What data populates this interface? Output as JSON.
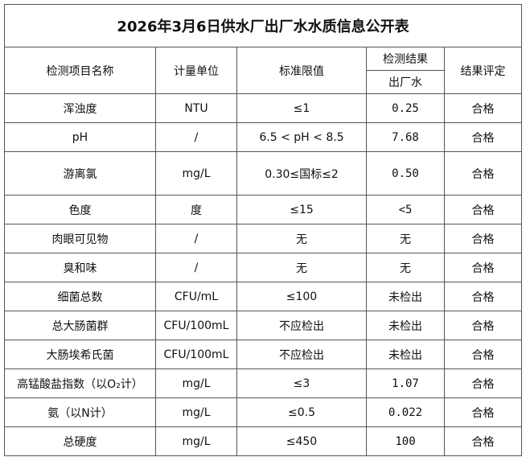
{
  "title": "2026年3月6日供水厂出厂水水质信息公开表",
  "header": {
    "item": "检测项目名称",
    "unit": "计量单位",
    "limit": "标准限值",
    "result": "检测结果",
    "result_sub": "出厂水",
    "evaluation": "结果评定"
  },
  "rows": [
    [
      "浑浊度",
      "NTU",
      "≤1",
      "0.25",
      "合格"
    ],
    [
      "pH",
      "/",
      "6.5 < pH < 8.5",
      "7.68",
      "合格"
    ],
    [
      "游离氯",
      "mg/L",
      "0.30≤国标≤2",
      "0.50",
      "合格"
    ],
    [
      "色度",
      "度",
      "≤15",
      "<5",
      "合格"
    ],
    [
      "肉眼可见物",
      "/",
      "无",
      "无",
      "合格"
    ],
    [
      "臭和味",
      "/",
      "无",
      "无",
      "合格"
    ],
    [
      "细菌总数",
      "CFU/mL",
      "≤100",
      "未检出",
      "合格"
    ],
    [
      "总大肠菌群",
      "CFU/100mL",
      "不应检出",
      "未检出",
      "合格"
    ],
    [
      "大肠埃希氏菌",
      "CFU/100mL",
      "不应检出",
      "未检出",
      "合格"
    ],
    [
      "高锰酸盐指数（以O₂计）",
      "mg/L",
      "≤3",
      "1.07",
      "合格"
    ],
    [
      "氨（以N计）",
      "mg/L",
      "≤0.5",
      "0.022",
      "合格"
    ],
    [
      "总硬度",
      "mg/L",
      "≤450",
      "100",
      "合格"
    ]
  ]
}
